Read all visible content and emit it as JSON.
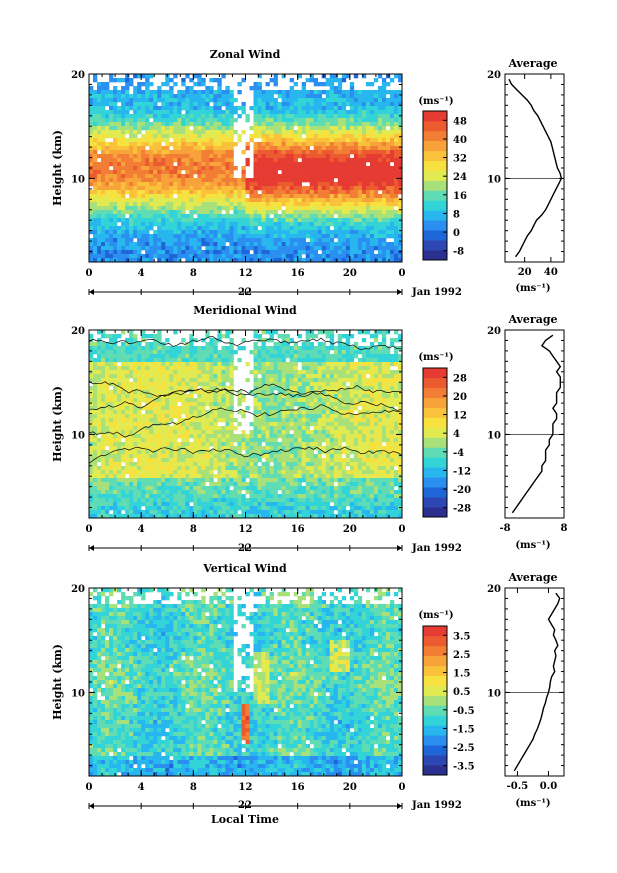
{
  "chart_data": [
    {
      "type": "heatmap",
      "title": "Zonal Wind",
      "ylabel": "Height (km)",
      "ylim": [
        2,
        20
      ],
      "xlim": [
        0,
        24
      ],
      "x_ticks": [
        "0",
        "4",
        "8",
        "12",
        "16",
        "20",
        "0"
      ],
      "y_ticks": [
        "20",
        "10"
      ],
      "date_marker": "22",
      "date_label": "Jan 1992",
      "colorbar": {
        "unit_label": "(ms⁻¹)",
        "ticks": [
          "48",
          "40",
          "32",
          "24",
          "16",
          "8",
          "0",
          "-8"
        ],
        "range": [
          -12,
          52
        ],
        "colors": [
          "#2b2f8f",
          "#2c46b4",
          "#1e66d8",
          "#2a8ff0",
          "#27b7ee",
          "#33d4d8",
          "#5fdcb4",
          "#a8e07a",
          "#e2ea52",
          "#f7e13f",
          "#f9c23a",
          "#f7a33a",
          "#f27d34",
          "#ec5a30",
          "#e63b32"
        ]
      },
      "profile": {
        "title": "Average",
        "unit_label": "(ms⁻¹)",
        "x_ticks": [
          "20",
          "40"
        ],
        "xlim": [
          5,
          50
        ],
        "heights": [
          2.5,
          3,
          3.5,
          4,
          4.5,
          5,
          5.5,
          6,
          6.5,
          7,
          7.5,
          8,
          8.5,
          9,
          9.5,
          10,
          10.5,
          11,
          11.5,
          12,
          12.5,
          13,
          13.5,
          14,
          14.5,
          15,
          15.5,
          16,
          16.5,
          17,
          17.5,
          18,
          18.5,
          19,
          19.5
        ],
        "values": [
          13,
          16,
          18,
          20,
          22,
          25,
          27,
          29,
          33,
          36,
          38,
          40,
          42,
          44,
          46,
          48,
          47,
          45,
          44,
          43,
          42,
          41,
          40,
          38,
          36,
          34,
          32,
          30,
          27,
          25,
          22,
          18,
          14,
          10,
          8
        ]
      }
    },
    {
      "type": "heatmap",
      "title": "Meridional Wind",
      "ylabel": "Height (km)",
      "ylim": [
        2,
        20
      ],
      "xlim": [
        0,
        24
      ],
      "x_ticks": [
        "0",
        "4",
        "8",
        "12",
        "16",
        "20",
        "0"
      ],
      "y_ticks": [
        "20",
        "10"
      ],
      "date_marker": "22",
      "date_label": "Jan 1992",
      "colorbar": {
        "unit_label": "(ms⁻¹)",
        "ticks": [
          "28",
          "20",
          "12",
          "4",
          "-4",
          "-12",
          "-20",
          "-28"
        ],
        "range": [
          -32,
          32
        ],
        "colors": [
          "#2b2f8f",
          "#2c46b4",
          "#1e66d8",
          "#2a8ff0",
          "#27b7ee",
          "#33d4d8",
          "#5fdcb4",
          "#a8e07a",
          "#e2ea52",
          "#f7e13f",
          "#f9c23a",
          "#f7a33a",
          "#f27d34",
          "#ec5a30",
          "#e63b32"
        ]
      },
      "profile": {
        "title": "Average",
        "unit_label": "(ms⁻¹)",
        "x_ticks": [
          "-8",
          "8"
        ],
        "xlim": [
          -8,
          8
        ],
        "heights": [
          2.5,
          3,
          3.5,
          4,
          4.5,
          5,
          5.5,
          6,
          6.5,
          7,
          7.5,
          8,
          8.5,
          9,
          9.5,
          10,
          10.5,
          11,
          11.5,
          12,
          12.5,
          13,
          13.5,
          14,
          14.5,
          15,
          15.5,
          16,
          16.5,
          17,
          17.5,
          18,
          18.5,
          19,
          19.5
        ],
        "values": [
          -6,
          -5,
          -4,
          -3,
          -2,
          -1,
          0,
          1,
          2,
          2,
          3,
          3,
          3,
          4,
          4,
          5,
          5,
          5,
          6,
          6,
          5,
          6,
          6,
          6,
          7,
          7,
          7,
          6,
          7,
          6,
          5,
          4,
          2,
          3,
          5
        ]
      }
    },
    {
      "type": "heatmap",
      "title": "Vertical Wind",
      "ylabel": "Height (km)",
      "xlabel": "Local Time",
      "ylim": [
        2,
        20
      ],
      "xlim": [
        0,
        24
      ],
      "x_ticks": [
        "0",
        "4",
        "8",
        "12",
        "16",
        "20",
        "0"
      ],
      "y_ticks": [
        "20",
        "10"
      ],
      "date_marker": "22",
      "date_label": "Jan 1992",
      "colorbar": {
        "unit_label": "(ms⁻¹)",
        "ticks": [
          "3.5",
          "2.5",
          "1.5",
          "0.5",
          "-0.5",
          "-1.5",
          "-2.5",
          "-3.5"
        ],
        "range": [
          -4,
          4
        ],
        "colors": [
          "#2b2f8f",
          "#2c46b4",
          "#1e66d8",
          "#2a8ff0",
          "#27b7ee",
          "#33d4d8",
          "#5fdcb4",
          "#a8e07a",
          "#e2ea52",
          "#f7e13f",
          "#f9c23a",
          "#f7a33a",
          "#f27d34",
          "#ec5a30",
          "#e63b32"
        ]
      },
      "profile": {
        "title": "Average",
        "unit_label": "(ms⁻¹)",
        "x_ticks": [
          "-0.5",
          "0.0"
        ],
        "xlim": [
          -0.7,
          0.25
        ],
        "heights": [
          2.5,
          3,
          3.5,
          4,
          4.5,
          5,
          5.5,
          6,
          6.5,
          7,
          7.5,
          8,
          8.5,
          9,
          9.5,
          10,
          10.5,
          11,
          11.5,
          12,
          12.5,
          13,
          13.5,
          14,
          14.5,
          15,
          15.5,
          16,
          16.5,
          17,
          17.5,
          18,
          18.5,
          19,
          19.5
        ],
        "values": [
          -0.55,
          -0.5,
          -0.45,
          -0.4,
          -0.35,
          -0.3,
          -0.25,
          -0.22,
          -0.18,
          -0.15,
          -0.12,
          -0.1,
          -0.08,
          -0.05,
          -0.03,
          0.0,
          0.02,
          0.03,
          0.05,
          0.1,
          0.08,
          0.1,
          0.12,
          0.1,
          0.15,
          0.12,
          0.08,
          0.1,
          0.05,
          0.0,
          0.05,
          0.1,
          0.15,
          0.18,
          0.12
        ]
      }
    }
  ]
}
